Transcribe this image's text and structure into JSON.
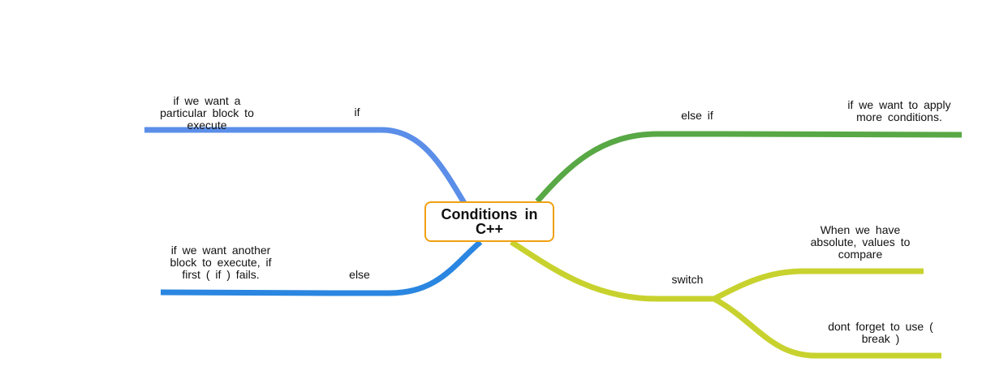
{
  "root": {
    "label": "Conditions  in\nC++"
  },
  "colors": {
    "if_branch": "#5b8ee9",
    "else_branch": "#2a86e0",
    "else_if_branch": "#58a845",
    "switch_branch": "#c8d22e",
    "root_border": "#f0a010"
  },
  "branches": {
    "if": {
      "label": "if",
      "note": "if  we  want  a\nparticular  block  to\nexecute"
    },
    "else": {
      "label": "else",
      "note": "if  we  want  another\nblock  to  execute,  if\nfirst  (  if  )  fails."
    },
    "else_if": {
      "label": "else if",
      "note": "if  we  want  to  apply\nmore  conditions."
    },
    "switch": {
      "label": "switch",
      "children": [
        {
          "note": "When  we  have\nabsolute,  values  to\ncompare"
        },
        {
          "note": "dont  forget  to  use  (\nbreak  )"
        }
      ]
    }
  }
}
